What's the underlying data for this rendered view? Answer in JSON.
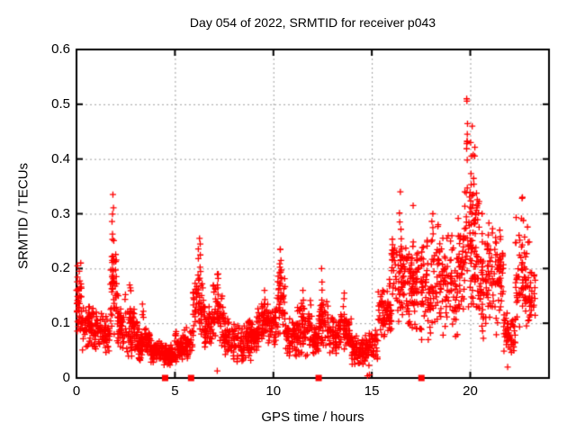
{
  "figure": {
    "background": "#ffffff"
  },
  "chart_data": {
    "type": "scatter",
    "title": "Day 054 of 2022, SRMTID for receiver p043",
    "xlabel": "GPS time / hours",
    "ylabel": "SRMTID / TECUs",
    "xlim": [
      0,
      24
    ],
    "ylim": [
      0,
      0.6
    ],
    "xticks": [
      {
        "v": 0,
        "label": "0"
      },
      {
        "v": 5,
        "label": "5"
      },
      {
        "v": 10,
        "label": "10"
      },
      {
        "v": 15,
        "label": "15"
      },
      {
        "v": 20,
        "label": "20"
      }
    ],
    "yticks": [
      {
        "v": 0.0,
        "label": "0"
      },
      {
        "v": 0.1,
        "label": "0.1"
      },
      {
        "v": 0.2,
        "label": "0.2"
      },
      {
        "v": 0.3,
        "label": "0.3"
      },
      {
        "v": 0.4,
        "label": "0.4"
      },
      {
        "v": 0.5,
        "label": "0.5"
      },
      {
        "v": 0.6,
        "label": "0.6"
      }
    ],
    "grid": true,
    "legend_position": "none",
    "colors": {
      "points": "#ff0000",
      "grid": "#a0a0a0",
      "axis": "#000000",
      "background": "#ffffff"
    },
    "seed": 54,
    "main_series": {
      "marker": "plus",
      "comment_structure": "density_segments: [x_start,x_end,y_min,y_max,n_points]; peaks: [x_center,x_width,y_base,y_top,n_points]",
      "density_segments": [
        [
          0.0,
          0.25,
          0.06,
          0.21,
          40
        ],
        [
          0.25,
          0.9,
          0.04,
          0.13,
          70
        ],
        [
          0.9,
          1.7,
          0.04,
          0.12,
          85
        ],
        [
          1.7,
          2.05,
          0.08,
          0.3,
          40
        ],
        [
          2.05,
          2.5,
          0.05,
          0.18,
          48
        ],
        [
          2.5,
          3.1,
          0.04,
          0.16,
          65
        ],
        [
          3.1,
          3.75,
          0.025,
          0.09,
          80
        ],
        [
          3.75,
          4.95,
          0.018,
          0.068,
          140
        ],
        [
          4.95,
          5.9,
          0.03,
          0.1,
          100
        ],
        [
          5.9,
          6.45,
          0.06,
          0.2,
          50
        ],
        [
          6.45,
          6.95,
          0.04,
          0.13,
          52
        ],
        [
          6.95,
          7.5,
          0.05,
          0.17,
          52
        ],
        [
          7.5,
          9.2,
          0.03,
          0.115,
          175
        ],
        [
          9.2,
          10.15,
          0.04,
          0.135,
          95
        ],
        [
          10.15,
          10.6,
          0.07,
          0.2,
          42
        ],
        [
          10.6,
          11.15,
          0.04,
          0.12,
          55
        ],
        [
          11.15,
          11.95,
          0.04,
          0.15,
          80
        ],
        [
          11.95,
          12.3,
          0.035,
          0.1,
          38
        ],
        [
          12.3,
          12.85,
          0.04,
          0.145,
          55
        ],
        [
          12.85,
          13.35,
          0.035,
          0.11,
          50
        ],
        [
          13.35,
          13.95,
          0.04,
          0.145,
          60
        ],
        [
          13.95,
          15.3,
          0.022,
          0.09,
          120
        ],
        [
          15.3,
          16.0,
          0.05,
          0.16,
          70
        ],
        [
          16.0,
          16.7,
          0.09,
          0.27,
          70
        ],
        [
          16.7,
          17.5,
          0.09,
          0.29,
          80
        ],
        [
          17.5,
          18.5,
          0.07,
          0.28,
          95
        ],
        [
          18.5,
          19.35,
          0.05,
          0.26,
          75
        ],
        [
          19.35,
          19.65,
          0.1,
          0.33,
          32
        ],
        [
          19.65,
          20.45,
          0.13,
          0.42,
          95
        ],
        [
          20.45,
          21.2,
          0.06,
          0.29,
          70
        ],
        [
          21.2,
          21.7,
          0.05,
          0.27,
          48
        ],
        [
          21.7,
          22.3,
          0.025,
          0.12,
          55
        ],
        [
          22.3,
          23.0,
          0.08,
          0.3,
          65
        ],
        [
          23.0,
          23.3,
          0.09,
          0.25,
          25
        ]
      ],
      "peaks": [
        [
          1.85,
          0.12,
          0.16,
          0.335,
          14
        ],
        [
          2.7,
          0.12,
          0.1,
          0.17,
          5
        ],
        [
          3.35,
          0.1,
          0.07,
          0.135,
          4
        ],
        [
          6.25,
          0.15,
          0.1,
          0.255,
          12
        ],
        [
          7.2,
          0.1,
          0.1,
          0.19,
          6
        ],
        [
          9.55,
          0.1,
          0.1,
          0.16,
          5
        ],
        [
          10.35,
          0.12,
          0.12,
          0.235,
          10
        ],
        [
          11.5,
          0.08,
          0.1,
          0.16,
          4
        ],
        [
          12.45,
          0.05,
          0.12,
          0.2,
          3
        ],
        [
          13.6,
          0.08,
          0.1,
          0.155,
          4
        ],
        [
          15.9,
          0.06,
          0.1,
          0.18,
          4
        ],
        [
          16.45,
          0.1,
          0.18,
          0.34,
          9
        ],
        [
          17.1,
          0.1,
          0.18,
          0.315,
          7
        ],
        [
          18.1,
          0.1,
          0.2,
          0.3,
          5
        ],
        [
          19.0,
          0.08,
          0.15,
          0.25,
          4
        ],
        [
          19.82,
          0.12,
          0.32,
          0.51,
          9
        ],
        [
          20.1,
          0.3,
          0.28,
          0.46,
          16
        ],
        [
          20.6,
          0.08,
          0.18,
          0.3,
          5
        ],
        [
          21.5,
          0.1,
          0.16,
          0.27,
          5
        ],
        [
          22.65,
          0.1,
          0.18,
          0.33,
          7
        ]
      ],
      "explicit_points": [
        [
          14.78,
          0.004
        ],
        [
          14.88,
          0.006
        ],
        [
          7.15,
          0.013
        ],
        [
          21.9,
          0.02
        ],
        [
          0.05,
          0.205
        ]
      ]
    },
    "flag_series": {
      "marker": "filled-square",
      "y": 0,
      "x": [
        4.5,
        5.82,
        12.3,
        17.52
      ]
    },
    "observed_extremes": {
      "max_y": 0.51,
      "max_y_at_x": 19.8,
      "x_data_end": 23.3
    }
  }
}
